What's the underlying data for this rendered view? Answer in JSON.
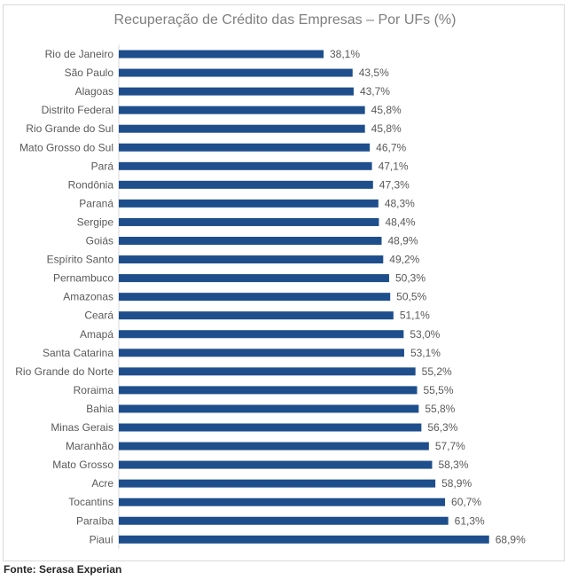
{
  "chart_data": {
    "type": "bar",
    "orientation": "horizontal",
    "title": "Recuperação de Crédito das Empresas – Por UFs (%)",
    "xlabel": "",
    "ylabel": "",
    "xlim": [
      0,
      70
    ],
    "grid": false,
    "categories": [
      "Rio de Janeiro",
      "São Paulo",
      "Alagoas",
      "Distrito Federal",
      "Rio Grande do Sul",
      "Mato Grosso do Sul",
      "Pará",
      "Rondônia",
      "Paraná",
      "Sergipe",
      "Goiás",
      "Espírito Santo",
      "Pernambuco",
      "Amazonas",
      "Ceará",
      "Amapá",
      "Santa Catarina",
      "Rio Grande do Norte",
      "Roraima",
      "Bahia",
      "Minas Gerais",
      "Maranhão",
      "Mato Grosso",
      "Acre",
      "Tocantins",
      "Paraíba",
      "Piauí"
    ],
    "values": [
      38.1,
      43.5,
      43.7,
      45.8,
      45.8,
      46.7,
      47.1,
      47.3,
      48.3,
      48.4,
      48.9,
      49.2,
      50.3,
      50.5,
      51.1,
      53.0,
      53.1,
      55.2,
      55.5,
      55.8,
      56.3,
      57.7,
      58.3,
      58.9,
      60.7,
      61.3,
      68.9
    ],
    "labels": [
      "38,1%",
      "43,5%",
      "43,7%",
      "45,8%",
      "45,8%",
      "46,7%",
      "47,1%",
      "47,3%",
      "48,3%",
      "48,4%",
      "48,9%",
      "49,2%",
      "50,3%",
      "50,5%",
      "51,1%",
      "53,0%",
      "53,1%",
      "55,2%",
      "55,5%",
      "55,8%",
      "56,3%",
      "57,7%",
      "58,3%",
      "58,9%",
      "60,7%",
      "61,3%",
      "68,9%"
    ],
    "bar_color": "#1f4e8c"
  },
  "source": "Fonte: Serasa Experian"
}
